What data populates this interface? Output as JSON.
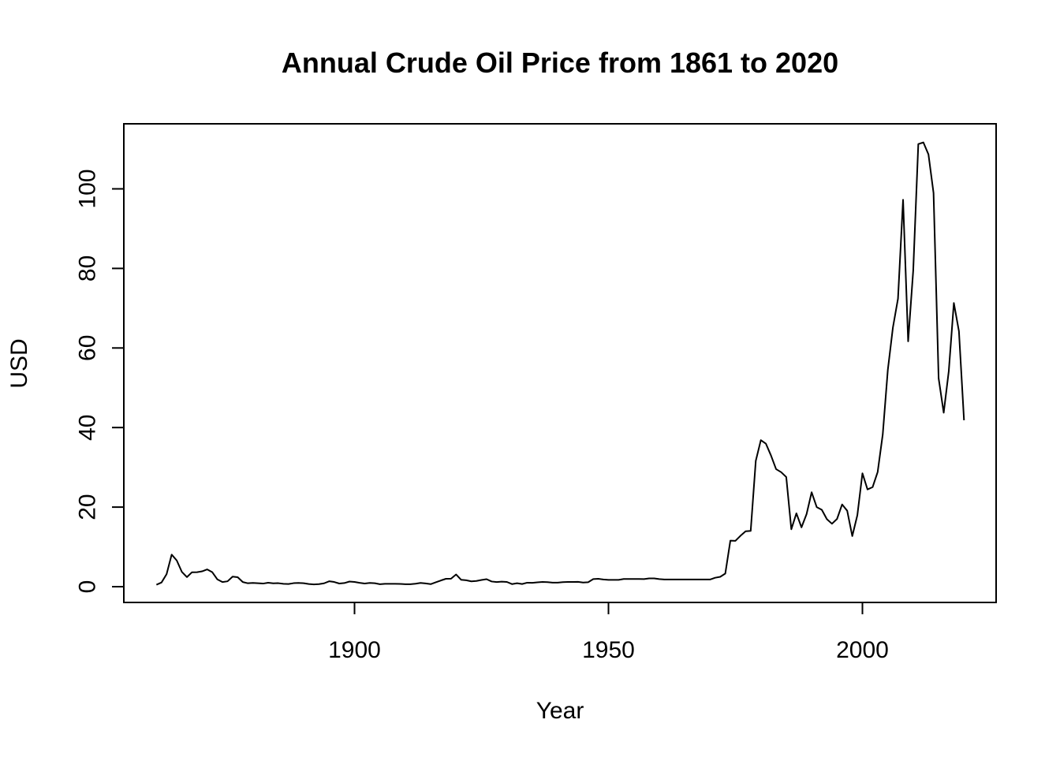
{
  "chart_data": {
    "type": "line",
    "title": "Annual Crude Oil Price from 1861 to 2020",
    "xlabel": "Year",
    "ylabel": "USD",
    "xlim": [
      1861,
      2020
    ],
    "ylim": [
      0,
      112
    ],
    "xticks": [
      1900,
      1950,
      2000
    ],
    "yticks": [
      0,
      20,
      40,
      60,
      80,
      100
    ],
    "grid": false,
    "line_color": "#000000",
    "series": [
      {
        "x": [
          1861,
          1862,
          1863,
          1864,
          1865,
          1866,
          1867,
          1868,
          1869,
          1870,
          1871,
          1872,
          1873,
          1874,
          1875,
          1876,
          1877,
          1878,
          1879,
          1880,
          1881,
          1882,
          1883,
          1884,
          1885,
          1886,
          1887,
          1888,
          1889,
          1890,
          1891,
          1892,
          1893,
          1894,
          1895,
          1896,
          1897,
          1898,
          1899,
          1900,
          1901,
          1902,
          1903,
          1904,
          1905,
          1906,
          1907,
          1908,
          1909,
          1910,
          1911,
          1912,
          1913,
          1914,
          1915,
          1916,
          1917,
          1918,
          1919,
          1920,
          1921,
          1922,
          1923,
          1924,
          1925,
          1926,
          1927,
          1928,
          1929,
          1930,
          1931,
          1932,
          1933,
          1934,
          1935,
          1936,
          1937,
          1938,
          1939,
          1940,
          1941,
          1942,
          1943,
          1944,
          1945,
          1946,
          1947,
          1948,
          1949,
          1950,
          1951,
          1952,
          1953,
          1954,
          1955,
          1956,
          1957,
          1958,
          1959,
          1960,
          1961,
          1962,
          1963,
          1964,
          1965,
          1966,
          1967,
          1968,
          1969,
          1970,
          1971,
          1972,
          1973,
          1974,
          1975,
          1976,
          1977,
          1978,
          1979,
          1980,
          1981,
          1982,
          1983,
          1984,
          1985,
          1986,
          1987,
          1988,
          1989,
          1990,
          1991,
          1992,
          1993,
          1994,
          1995,
          1996,
          1997,
          1998,
          1999,
          2000,
          2001,
          2002,
          2003,
          2004,
          2005,
          2006,
          2007,
          2008,
          2009,
          2010,
          2011,
          2012,
          2013,
          2014,
          2015,
          2016,
          2017,
          2018,
          2019,
          2020
        ],
        "values": [
          0.49,
          1.05,
          3.15,
          8.06,
          6.59,
          3.74,
          2.41,
          3.63,
          3.64,
          3.86,
          4.34,
          3.64,
          1.83,
          1.17,
          1.35,
          2.52,
          2.38,
          1.17,
          0.86,
          0.95,
          0.86,
          0.78,
          1.0,
          0.84,
          0.88,
          0.71,
          0.67,
          0.88,
          0.94,
          0.87,
          0.67,
          0.56,
          0.64,
          0.84,
          1.36,
          1.18,
          0.79,
          0.91,
          1.29,
          1.19,
          0.96,
          0.8,
          0.94,
          0.86,
          0.62,
          0.73,
          0.72,
          0.72,
          0.7,
          0.61,
          0.61,
          0.74,
          0.95,
          0.81,
          0.64,
          1.1,
          1.56,
          1.98,
          2.01,
          3.07,
          1.73,
          1.61,
          1.34,
          1.43,
          1.68,
          1.88,
          1.3,
          1.17,
          1.27,
          1.19,
          0.65,
          0.87,
          0.67,
          1.0,
          0.97,
          1.09,
          1.18,
          1.13,
          1.02,
          1.02,
          1.14,
          1.19,
          1.2,
          1.21,
          1.05,
          1.12,
          1.9,
          1.99,
          1.8,
          1.71,
          1.71,
          1.71,
          1.93,
          1.93,
          1.93,
          1.93,
          1.9,
          2.08,
          2.08,
          1.9,
          1.8,
          1.8,
          1.8,
          1.8,
          1.8,
          1.8,
          1.8,
          1.8,
          1.8,
          1.8,
          2.24,
          2.48,
          3.29,
          11.58,
          11.53,
          12.8,
          13.92,
          14.02,
          31.61,
          36.83,
          35.93,
          32.97,
          29.55,
          28.78,
          27.56,
          14.43,
          18.44,
          14.92,
          18.23,
          23.73,
          20.0,
          19.32,
          16.97,
          15.82,
          17.02,
          20.67,
          19.09,
          12.72,
          17.97,
          28.5,
          24.44,
          25.02,
          28.83,
          38.27,
          54.52,
          65.14,
          72.39,
          97.26,
          61.67,
          79.5,
          111.26,
          111.67,
          108.66,
          98.95,
          52.39,
          43.73,
          54.19,
          71.31,
          64.21,
          41.84
        ]
      }
    ]
  }
}
